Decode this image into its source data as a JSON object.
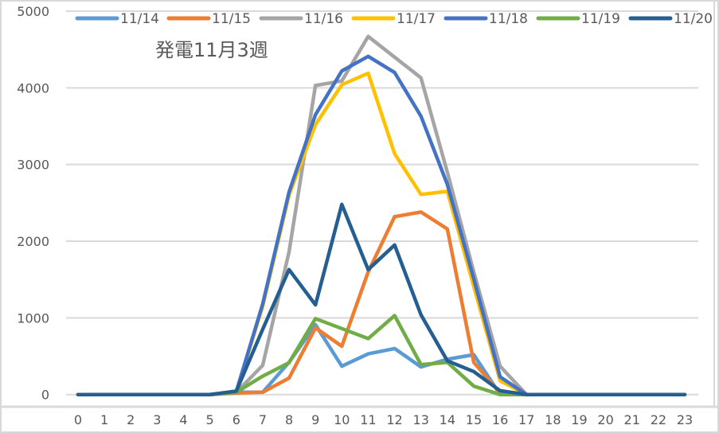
{
  "chart_data": {
    "type": "line",
    "title": "発電11月3週",
    "xlabel": "",
    "ylabel": "",
    "ylim": [
      0,
      5000
    ],
    "yticks": [
      0,
      1000,
      2000,
      3000,
      4000,
      5000
    ],
    "grid": true,
    "legend_position": "top",
    "x": [
      0,
      1,
      2,
      3,
      4,
      5,
      6,
      7,
      8,
      9,
      10,
      11,
      12,
      13,
      14,
      15,
      16,
      17,
      18,
      19,
      20,
      21,
      22,
      23
    ],
    "series": [
      {
        "name": "11/14",
        "color": "#5B9BD5",
        "values": [
          0,
          0,
          0,
          0,
          0,
          0,
          30,
          30,
          420,
          910,
          370,
          530,
          600,
          360,
          460,
          520,
          0,
          0,
          0,
          0,
          0,
          0,
          0,
          0
        ]
      },
      {
        "name": "11/15",
        "color": "#ED7D31",
        "values": [
          0,
          0,
          0,
          0,
          0,
          0,
          20,
          30,
          215,
          870,
          630,
          1600,
          2320,
          2380,
          2160,
          420,
          20,
          0,
          0,
          0,
          0,
          0,
          0,
          0
        ]
      },
      {
        "name": "11/16",
        "color": "#A5A5A5",
        "values": [
          0,
          0,
          0,
          0,
          0,
          0,
          30,
          380,
          1860,
          4030,
          4090,
          4670,
          4400,
          4130,
          2900,
          1600,
          370,
          0,
          0,
          0,
          0,
          0,
          0,
          0
        ]
      },
      {
        "name": "11/17",
        "color": "#FFC000",
        "values": [
          0,
          0,
          0,
          0,
          0,
          0,
          40,
          1150,
          2600,
          3520,
          4040,
          4190,
          3140,
          2610,
          2650,
          1410,
          180,
          0,
          0,
          0,
          0,
          0,
          0,
          0
        ]
      },
      {
        "name": "11/18",
        "color": "#4472C4",
        "values": [
          0,
          0,
          0,
          0,
          0,
          0,
          40,
          1180,
          2640,
          3650,
          4220,
          4410,
          4200,
          3630,
          2740,
          1510,
          230,
          0,
          0,
          0,
          0,
          0,
          0,
          0
        ]
      },
      {
        "name": "11/19",
        "color": "#70AD47",
        "values": [
          0,
          0,
          0,
          0,
          0,
          0,
          30,
          240,
          415,
          990,
          860,
          730,
          1030,
          390,
          420,
          110,
          0,
          0,
          0,
          0,
          0,
          0,
          0,
          0
        ]
      },
      {
        "name": "11/20",
        "color": "#255E91",
        "values": [
          0,
          0,
          0,
          0,
          0,
          0,
          45,
          850,
          1630,
          1170,
          2480,
          1630,
          1950,
          1040,
          440,
          300,
          50,
          0,
          0,
          0,
          0,
          0,
          0,
          0
        ]
      }
    ]
  },
  "colors": {
    "grid": "#D9D9D9",
    "axis_text": "#595959",
    "frame": "#D9D9D9"
  }
}
